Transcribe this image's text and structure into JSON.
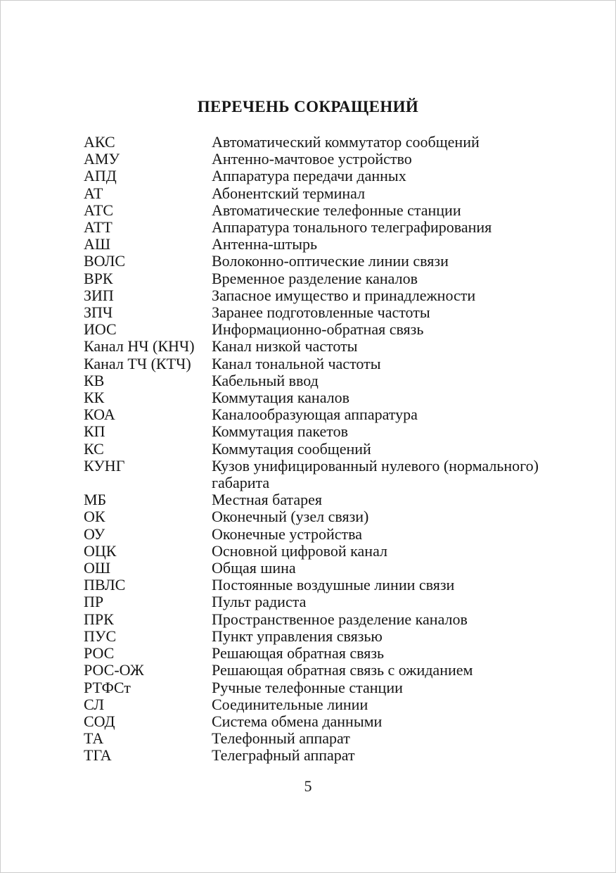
{
  "page": {
    "title": "ПЕРЕЧЕНЬ СОКРАЩЕНИЙ",
    "page_number": "5",
    "background_color": "#ffffff",
    "text_color": "#161616"
  },
  "abbreviations": [
    {
      "abbr": "АКС",
      "def": [
        "Автоматический коммутатор сообщений"
      ]
    },
    {
      "abbr": "АМУ",
      "def": [
        "Антенно-мачтовое устройство"
      ]
    },
    {
      "abbr": "АПД",
      "def": [
        "Аппаратура передачи данных"
      ]
    },
    {
      "abbr": "АТ",
      "def": [
        "Абонентский терминал"
      ]
    },
    {
      "abbr": "АТС",
      "def": [
        "Автоматические телефонные станции"
      ]
    },
    {
      "abbr": "АТТ",
      "def": [
        "Аппаратура тонального телеграфирования"
      ]
    },
    {
      "abbr": "АШ",
      "def": [
        "Антенна-штырь"
      ]
    },
    {
      "abbr": "ВОЛС",
      "def": [
        "Волоконно-оптические линии связи"
      ]
    },
    {
      "abbr": "ВРК",
      "def": [
        "Временное разделение каналов"
      ]
    },
    {
      "abbr": "ЗИП",
      "def": [
        "Запасное имущество и принадлежности"
      ]
    },
    {
      "abbr": "ЗПЧ",
      "def": [
        "Заранее подготовленные частоты"
      ]
    },
    {
      "abbr": "ИОС",
      "def": [
        "Информационно-обратная связь"
      ]
    },
    {
      "abbr": "Канал НЧ (КНЧ)",
      "def": [
        "Канал низкой частоты"
      ]
    },
    {
      "abbr": "Канал ТЧ (КТЧ)",
      "def": [
        "Канал тональной частоты"
      ]
    },
    {
      "abbr": "КВ",
      "def": [
        "Кабельный ввод"
      ]
    },
    {
      "abbr": "КК",
      "def": [
        "Коммутация каналов"
      ]
    },
    {
      "abbr": "КОА",
      "def": [
        "Каналообразующая аппаратура"
      ]
    },
    {
      "abbr": "КП",
      "def": [
        "Коммутация пакетов"
      ]
    },
    {
      "abbr": "КС",
      "def": [
        "Коммутация сообщений"
      ]
    },
    {
      "abbr": "КУНГ",
      "def": [
        "Кузов унифицированный нулевого (нормального)",
        "габарита"
      ]
    },
    {
      "abbr": "МБ",
      "def": [
        "Местная батарея"
      ]
    },
    {
      "abbr": "ОК",
      "def": [
        "Оконечный (узел связи)"
      ]
    },
    {
      "abbr": "ОУ",
      "def": [
        "Оконечные устройства"
      ]
    },
    {
      "abbr": "ОЦК",
      "def": [
        "Основной цифровой канал"
      ]
    },
    {
      "abbr": "ОШ",
      "def": [
        "Общая шина"
      ]
    },
    {
      "abbr": "ПВЛС",
      "def": [
        "Постоянные воздушные линии связи"
      ]
    },
    {
      "abbr": "ПР",
      "def": [
        "Пульт радиста"
      ]
    },
    {
      "abbr": "ПРК",
      "def": [
        "Пространственное разделение каналов"
      ]
    },
    {
      "abbr": "ПУС",
      "def": [
        "Пункт управления связью"
      ]
    },
    {
      "abbr": "РОС",
      "def": [
        "Решающая обратная связь"
      ]
    },
    {
      "abbr": "РОС-ОЖ",
      "def": [
        "Решающая обратная связь с ожиданием"
      ]
    },
    {
      "abbr": "РТФСт",
      "def": [
        "Ручные телефонные станции"
      ]
    },
    {
      "abbr": "СЛ",
      "def": [
        "Соединительные линии"
      ]
    },
    {
      "abbr": "СОД",
      "def": [
        "Система обмена данными"
      ]
    },
    {
      "abbr": "ТА",
      "def": [
        "Телефонный аппарат"
      ]
    },
    {
      "abbr": "ТГА",
      "def": [
        "Телеграфный аппарат"
      ]
    }
  ]
}
